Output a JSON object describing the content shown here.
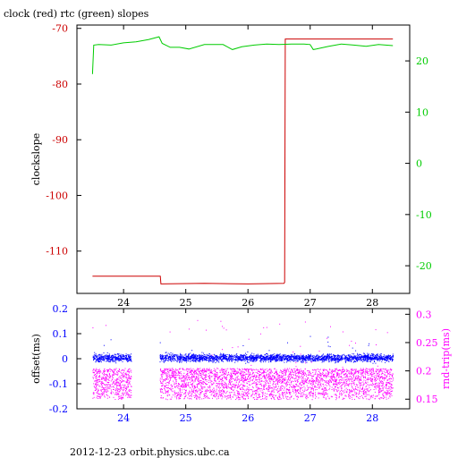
{
  "colors": {
    "clock": "#cc0000",
    "rtc": "#00cc00",
    "offset": "#0000ff",
    "rtt": "#ff00ff",
    "axis": "#000000",
    "background": "#ffffff"
  },
  "footer": "2012-12-23  orbit.physics.ubc.ca",
  "chart_data": [
    {
      "type": "line",
      "title": "clock (red) rtc (green) slopes",
      "ylabel": "clockslope",
      "y2label": "",
      "xlabel": "",
      "xlim": [
        23.25,
        28.6
      ],
      "ylim": [
        -117.6,
        -69.4
      ],
      "y2lim": [
        -25.4,
        27.0
      ],
      "xticks": [
        24,
        25,
        26,
        27,
        28
      ],
      "xtick_labels": [
        "24",
        "25",
        "26",
        "27",
        "28"
      ],
      "yticks": [
        -70,
        -80,
        -90,
        -100,
        -110
      ],
      "ytick_labels": [
        "-70",
        "-80",
        "-90",
        "-100",
        "-110"
      ],
      "y2ticks": [
        20,
        10,
        0,
        -10,
        -20
      ],
      "y2tick_labels": [
        "20",
        "10",
        "0",
        "-10",
        "-20"
      ],
      "grid": false,
      "series": [
        {
          "name": "clock",
          "axis": "left",
          "x": [
            23.5,
            24.59,
            24.6,
            25.3,
            26.0,
            26.58,
            26.59,
            26.6,
            27.0,
            27.5,
            28.0,
            28.33
          ],
          "y": [
            -114.5,
            -114.5,
            -115.9,
            -115.8,
            -115.9,
            -115.8,
            -115.6,
            -71.9,
            -71.9,
            -71.9,
            -71.9,
            -71.9
          ]
        },
        {
          "name": "rtc",
          "axis": "left",
          "x": [
            23.5,
            23.52,
            23.6,
            23.8,
            24.0,
            24.2,
            24.4,
            24.57,
            24.62,
            24.75,
            24.9,
            25.05,
            25.3,
            25.6,
            25.75,
            25.9,
            26.1,
            26.3,
            26.5,
            26.7,
            26.9,
            27.0,
            27.05,
            27.1,
            27.3,
            27.5,
            27.7,
            27.9,
            28.1,
            28.33
          ],
          "y": [
            -78.2,
            -73.0,
            -72.9,
            -73.0,
            -72.6,
            -72.4,
            -72.0,
            -71.5,
            -72.7,
            -73.4,
            -73.4,
            -73.7,
            -72.9,
            -72.9,
            -73.8,
            -73.3,
            -73.0,
            -72.8,
            -72.9,
            -72.8,
            -72.8,
            -72.9,
            -73.8,
            -73.7,
            -73.2,
            -72.8,
            -73.0,
            -73.2,
            -72.9,
            -73.1
          ]
        }
      ]
    },
    {
      "type": "scatter",
      "title": "",
      "ylabel": "offset(ms)",
      "y2label": "rnd-trip(ms)",
      "xlim": [
        23.25,
        28.6
      ],
      "ylim": [
        -0.2,
        0.2
      ],
      "y2lim": [
        0.133,
        0.31
      ],
      "xticks": [
        24,
        25,
        26,
        27,
        28
      ],
      "xtick_labels": [
        "24",
        "25",
        "26",
        "27",
        "28"
      ],
      "yticks": [
        0.2,
        0.1,
        0,
        -0.1,
        -0.2
      ],
      "ytick_labels": [
        "0.2",
        "0.1",
        "0",
        "-0.1",
        "-0.2"
      ],
      "y2ticks": [
        0.3,
        0.25,
        0.2,
        0.15
      ],
      "y2tick_labels": [
        "0.3",
        "0.25",
        "0.2",
        "0.15"
      ],
      "gaps": [
        [
          24.12,
          24.58
        ]
      ],
      "x_range": [
        23.5,
        28.33
      ],
      "series": [
        {
          "name": "offset",
          "axis": "left",
          "band_center": 0.005,
          "band_spread": 0.028,
          "outlier_max": 0.1
        },
        {
          "name": "rnd-trip",
          "axis": "right",
          "band_min": 0.15,
          "band_max": 0.205,
          "outlier_max": 0.29
        }
      ]
    }
  ]
}
